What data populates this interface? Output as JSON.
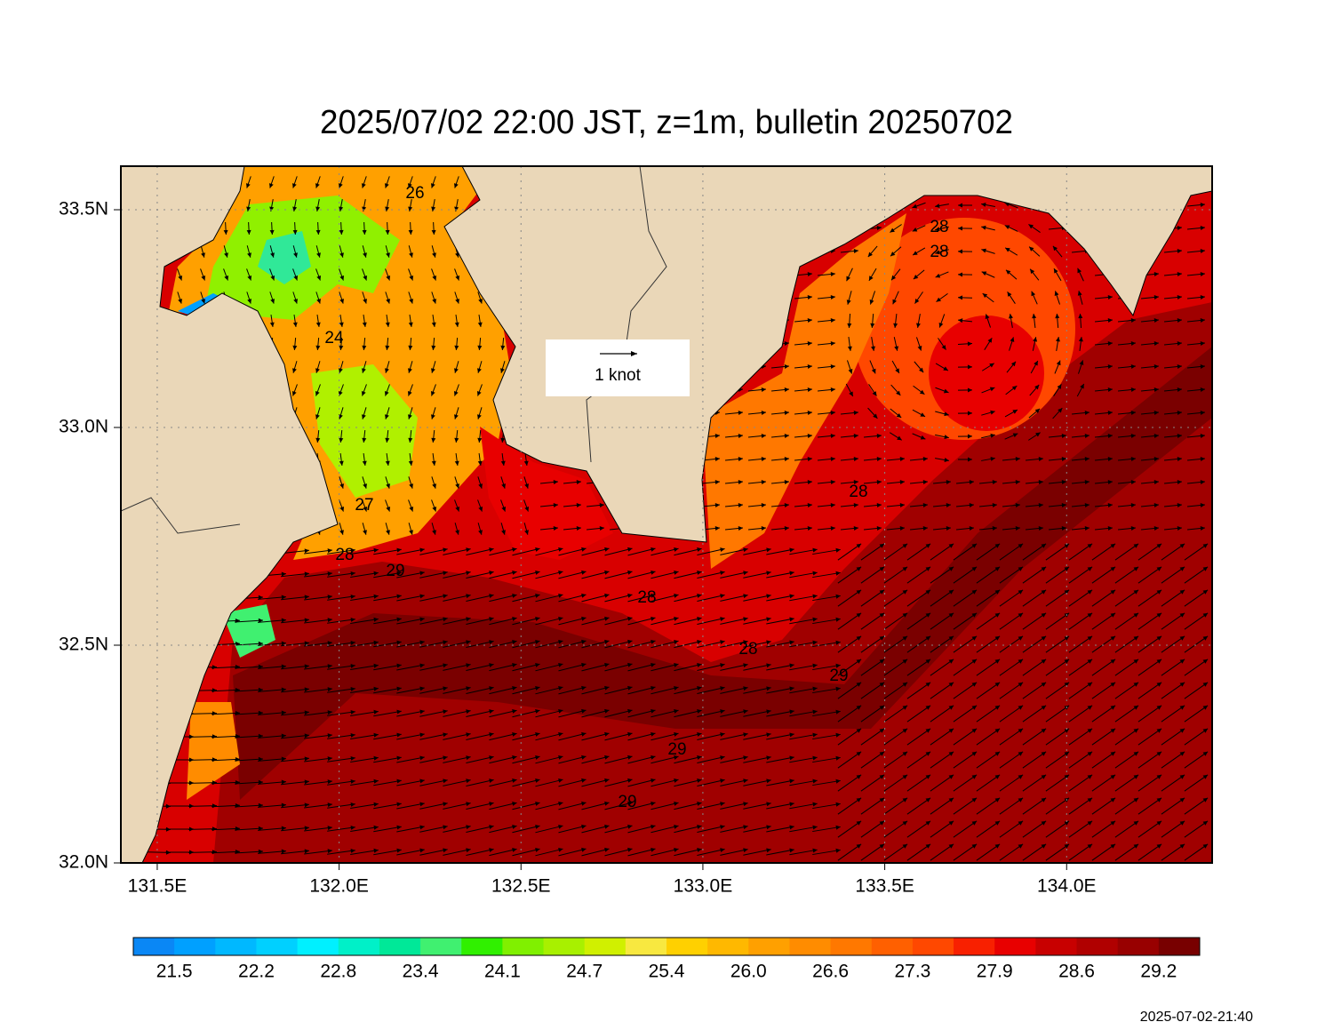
{
  "map": {
    "title": "2025/07/02 22:00 JST, z=1m, bulletin 20250702",
    "xlim": [
      131.4,
      134.4
    ],
    "ylim": [
      32.0,
      33.6
    ],
    "xticks": [
      {
        "value": 131.5,
        "label": "131.5E"
      },
      {
        "value": 132.0,
        "label": "132.0E"
      },
      {
        "value": 132.5,
        "label": "132.5E"
      },
      {
        "value": 133.0,
        "label": "133.0E"
      },
      {
        "value": 133.5,
        "label": "133.5E"
      },
      {
        "value": 134.0,
        "label": "134.0E"
      }
    ],
    "yticks": [
      {
        "value": 32.0,
        "label": "32.0N"
      },
      {
        "value": 32.5,
        "label": "32.5N"
      },
      {
        "value": 33.0,
        "label": "33.0N"
      },
      {
        "value": 33.5,
        "label": "33.5N"
      }
    ],
    "grid": true,
    "vector_legend": "1 knot",
    "contour_labels": [
      "26",
      "28",
      "28",
      "24",
      "28",
      "27",
      "28",
      "29",
      "28",
      "28",
      "29",
      "29",
      "29"
    ],
    "colorbar": {
      "colors": [
        "#0a87f5",
        "#00a0ff",
        "#00b8ff",
        "#00d0ff",
        "#00f0ff",
        "#00f0c8",
        "#00e898",
        "#40f070",
        "#30f000",
        "#80f000",
        "#a8f000",
        "#d0f000",
        "#f8e840",
        "#ffd000",
        "#ffb800",
        "#ffa000",
        "#ff8c00",
        "#ff7800",
        "#ff6000",
        "#ff4800",
        "#f82000",
        "#e80000",
        "#c80000",
        "#b00000",
        "#980000",
        "#780000"
      ],
      "labels": [
        21.5,
        22.2,
        22.8,
        23.4,
        24.1,
        24.7,
        25.4,
        {
          "value": 26.0,
          "label": "26.0"
        },
        26.6,
        27.3,
        27.9,
        28.6,
        29.2
      ]
    },
    "timestamp": "2025-07-02-21:40"
  }
}
